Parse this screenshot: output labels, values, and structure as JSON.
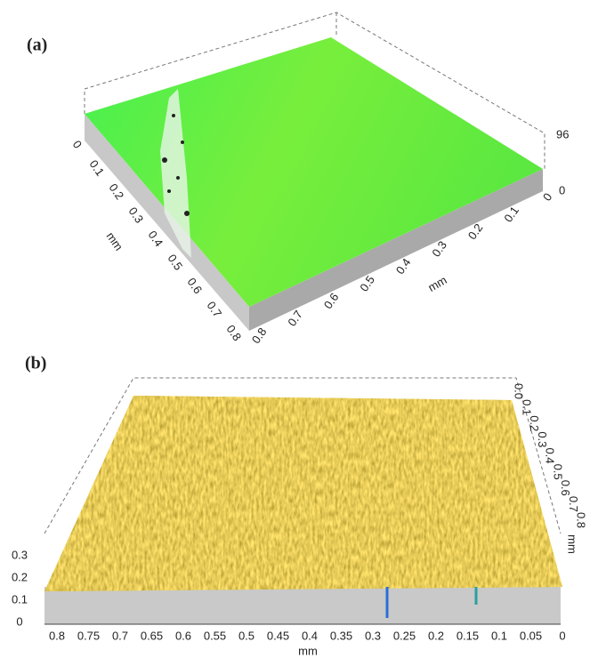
{
  "panel_a": {
    "label": "(a)",
    "left_axis": {
      "ticks": [
        "0",
        "0.1",
        "0.2",
        "0.3",
        "0.4",
        "0.5",
        "0.6",
        "0.7",
        "0.8"
      ],
      "title": "mm"
    },
    "right_axis": {
      "ticks": [
        "0",
        "0.1",
        "0.2",
        "0.3",
        "0.4",
        "0.5",
        "0.6",
        "0.7",
        "0.8"
      ],
      "title": "mm"
    },
    "z_axis": {
      "ticks": [
        "96",
        "0"
      ]
    }
  },
  "panel_b": {
    "label": "(b)",
    "z_axis": {
      "ticks": [
        "0.3",
        "0.2",
        "0.1",
        "0"
      ]
    },
    "bottom_axis": {
      "ticks": [
        "0.8",
        "0.75",
        "0.7",
        "0.65",
        "0.6",
        "0.55",
        "0.5",
        "0.45",
        "0.4",
        "0.35",
        "0.3",
        "0.25",
        "0.2",
        "0.15",
        "0.1",
        "0.05",
        "0"
      ],
      "title": "mm"
    },
    "right_axis": {
      "ticks": [
        "0.0",
        "0.1",
        "0.2",
        "0.3",
        "0.4",
        "0.5",
        "0.6",
        "0.7",
        "0.8"
      ],
      "title": "mm"
    }
  }
}
